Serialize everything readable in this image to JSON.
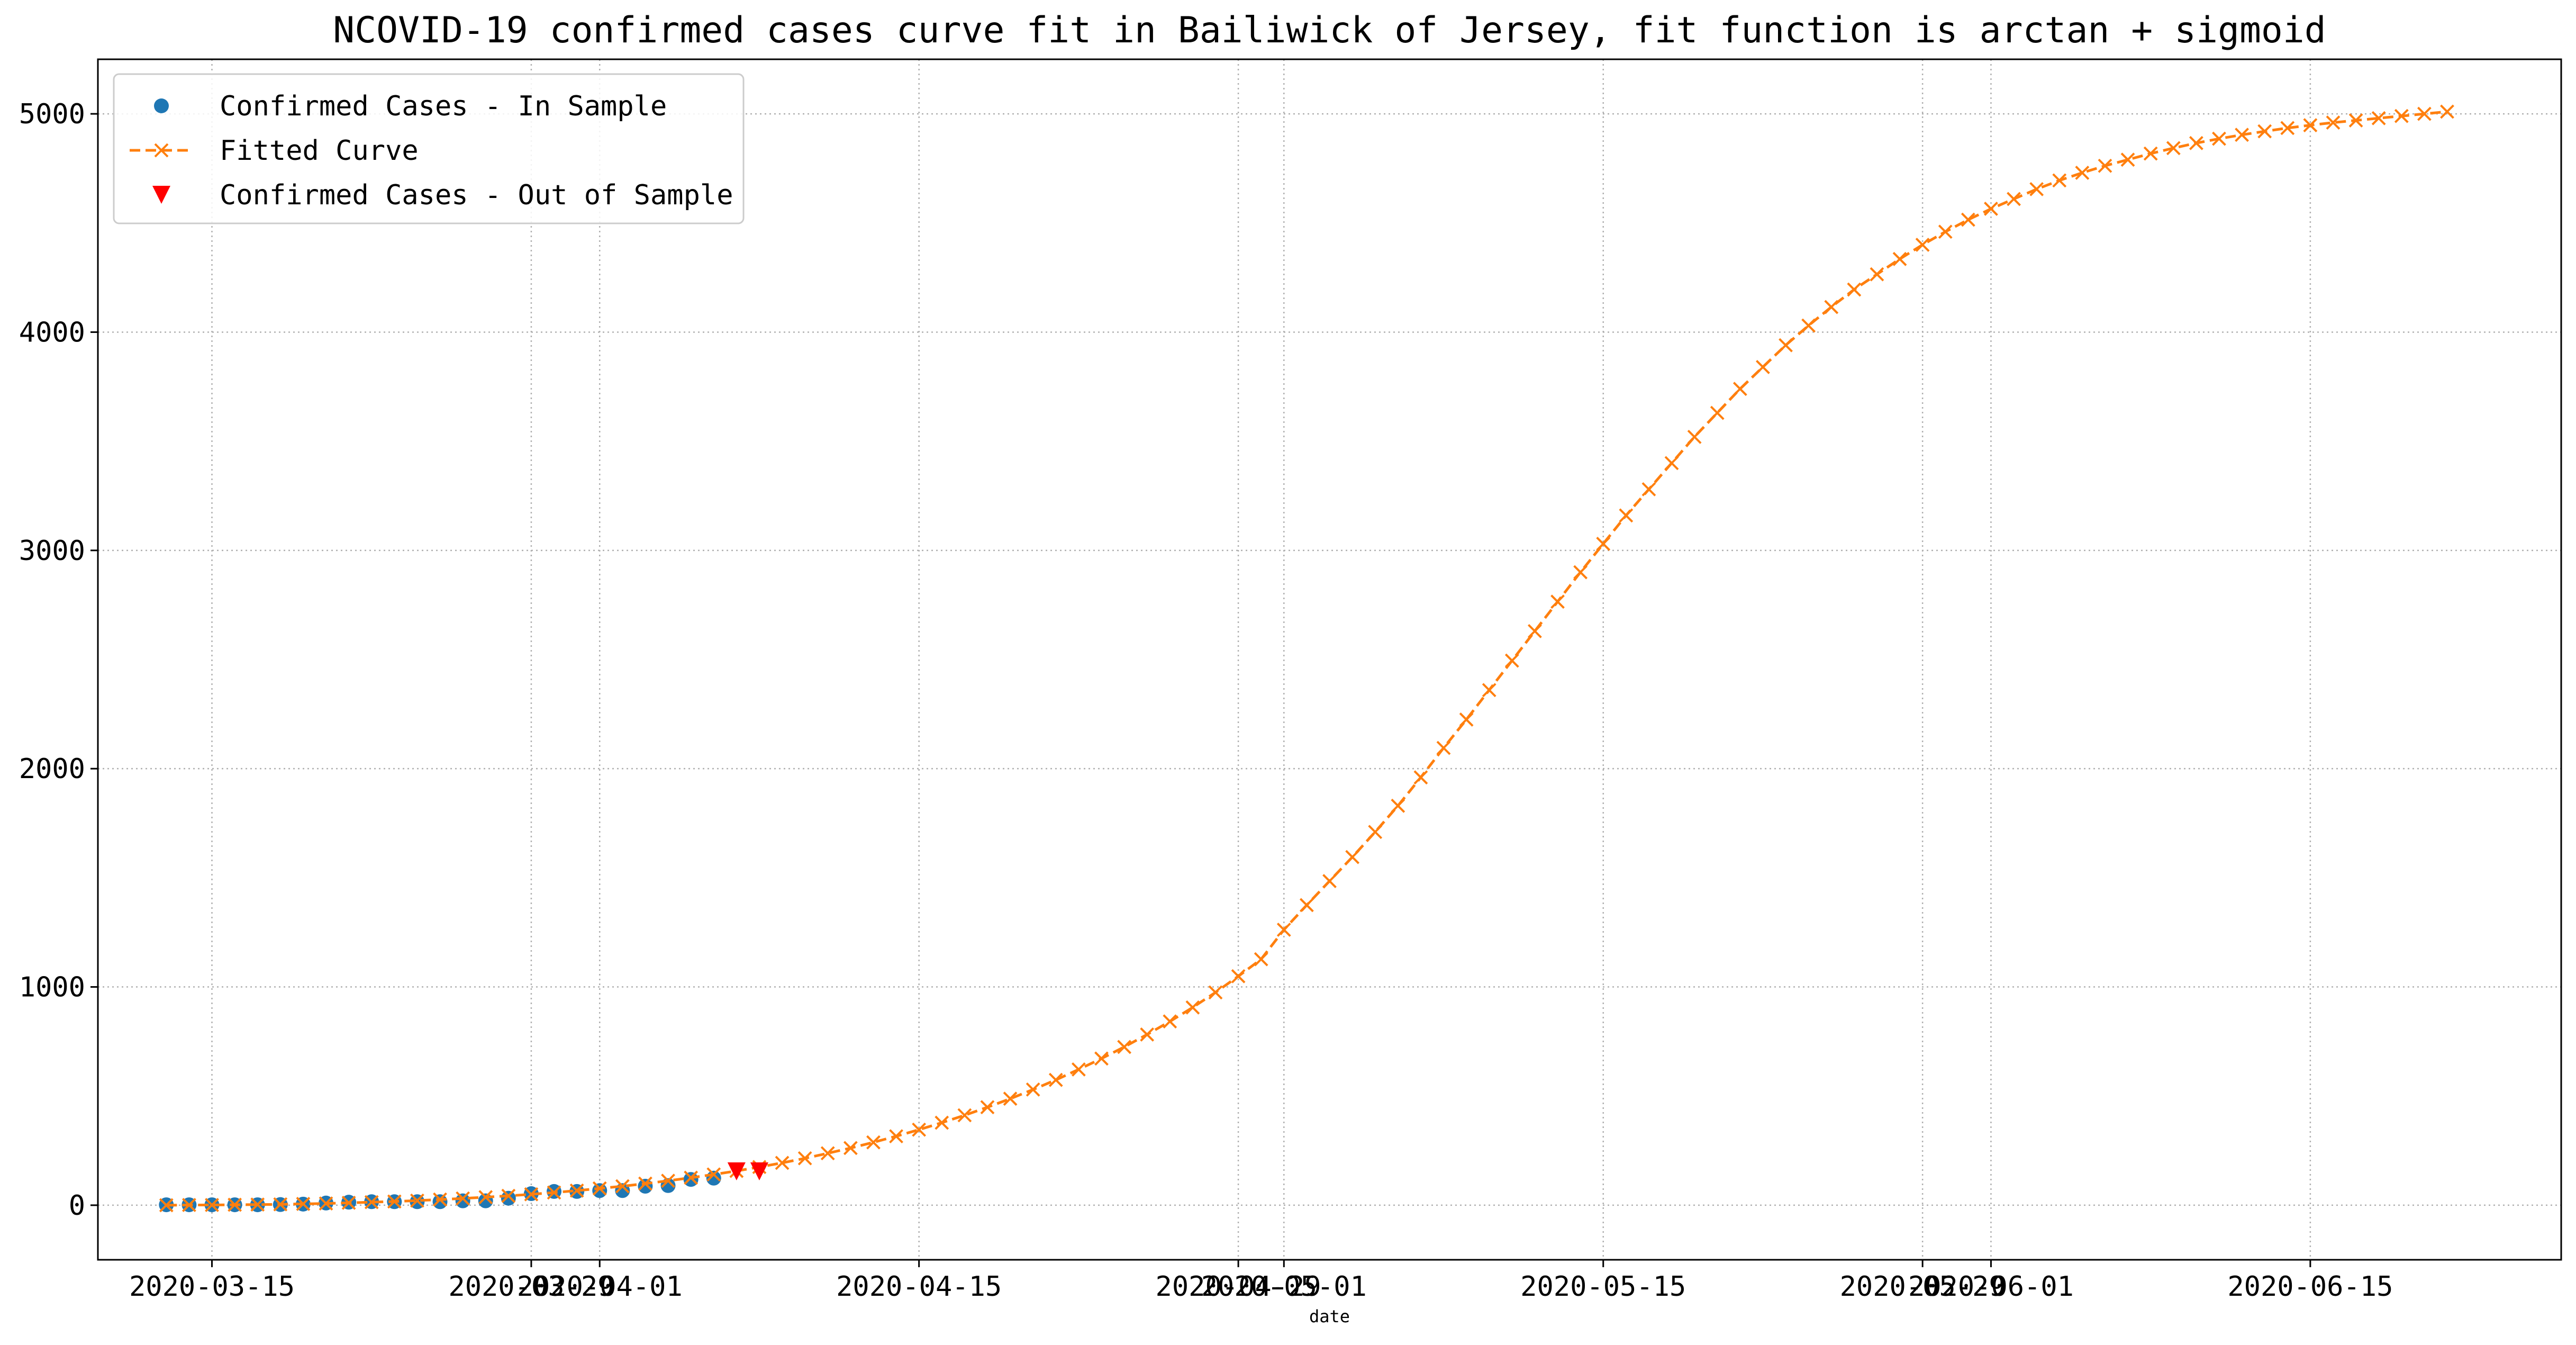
{
  "chart_data": {
    "type": "line",
    "title": "NCOVID-19 confirmed cases curve fit in Bailiwick of Jersey, fit function is arctan + sigmoid",
    "xlabel": "date",
    "ylabel": "",
    "xlim": [
      "2020-03-10",
      "2020-06-26"
    ],
    "ylim": [
      -250,
      5250
    ],
    "grid": true,
    "legend": "top-left",
    "x_ticks": [
      "2020-03-15",
      "2020-03-29",
      "2020-04-01",
      "2020-04-15",
      "2020-04-29",
      "2020-05-01",
      "2020-05-15",
      "2020-05-29",
      "2020-06-01",
      "2020-06-15"
    ],
    "y_ticks": [
      0,
      1000,
      2000,
      3000,
      4000,
      5000
    ],
    "series": [
      {
        "name": "Confirmed Cases - In Sample",
        "style": "circle",
        "color": "#1f77b4",
        "x": [
          "2020-03-13",
          "2020-03-14",
          "2020-03-15",
          "2020-03-16",
          "2020-03-17",
          "2020-03-18",
          "2020-03-19",
          "2020-03-20",
          "2020-03-21",
          "2020-03-22",
          "2020-03-23",
          "2020-03-24",
          "2020-03-25",
          "2020-03-26",
          "2020-03-27",
          "2020-03-28",
          "2020-03-29",
          "2020-03-30",
          "2020-03-31",
          "2020-04-01",
          "2020-04-02",
          "2020-04-03",
          "2020-04-04",
          "2020-04-05",
          "2020-04-06"
        ],
        "y": [
          2,
          2,
          2,
          2,
          2,
          3,
          5,
          10,
          14,
          16,
          16,
          16,
          16,
          20,
          20,
          32,
          53,
          63,
          63,
          67,
          67,
          87,
          90,
          118,
          124
        ]
      },
      {
        "name": "Fitted Curve",
        "style": "dashed-x",
        "color": "#ff7f0e",
        "x": [
          "2020-03-13",
          "2020-03-14",
          "2020-03-15",
          "2020-03-16",
          "2020-03-17",
          "2020-03-18",
          "2020-03-19",
          "2020-03-20",
          "2020-03-21",
          "2020-03-22",
          "2020-03-23",
          "2020-03-24",
          "2020-03-25",
          "2020-03-26",
          "2020-03-27",
          "2020-03-28",
          "2020-03-29",
          "2020-03-30",
          "2020-03-31",
          "2020-04-01",
          "2020-04-02",
          "2020-04-03",
          "2020-04-04",
          "2020-04-05",
          "2020-04-06",
          "2020-04-07",
          "2020-04-08",
          "2020-04-09",
          "2020-04-10",
          "2020-04-11",
          "2020-04-12",
          "2020-04-13",
          "2020-04-14",
          "2020-04-15",
          "2020-04-16",
          "2020-04-17",
          "2020-04-18",
          "2020-04-19",
          "2020-04-20",
          "2020-04-21",
          "2020-04-22",
          "2020-04-23",
          "2020-04-24",
          "2020-04-25",
          "2020-04-26",
          "2020-04-27",
          "2020-04-28",
          "2020-04-29",
          "2020-04-30",
          "2020-05-01",
          "2020-05-02",
          "2020-05-03",
          "2020-05-04",
          "2020-05-05",
          "2020-05-06",
          "2020-05-07",
          "2020-05-08",
          "2020-05-09",
          "2020-05-10",
          "2020-05-11",
          "2020-05-12",
          "2020-05-13",
          "2020-05-14",
          "2020-05-15",
          "2020-05-16",
          "2020-05-17",
          "2020-05-18",
          "2020-05-19",
          "2020-05-20",
          "2020-05-21",
          "2020-05-22",
          "2020-05-23",
          "2020-05-24",
          "2020-05-25",
          "2020-05-26",
          "2020-05-27",
          "2020-05-28",
          "2020-05-29",
          "2020-05-30",
          "2020-05-31",
          "2020-06-01",
          "2020-06-02",
          "2020-06-03",
          "2020-06-04",
          "2020-06-05",
          "2020-06-06",
          "2020-06-07",
          "2020-06-08",
          "2020-06-09",
          "2020-06-10",
          "2020-06-11",
          "2020-06-12",
          "2020-06-13",
          "2020-06-14",
          "2020-06-15",
          "2020-06-16",
          "2020-06-17",
          "2020-06-18",
          "2020-06-19",
          "2020-06-20",
          "2020-06-21"
        ],
        "y": [
          0,
          1,
          1,
          2,
          3,
          4,
          6,
          8,
          11,
          14,
          17,
          21,
          26,
          31,
          37,
          43,
          50,
          58,
          67,
          77,
          87,
          99,
          112,
          126,
          141,
          157,
          175,
          194,
          215,
          238,
          262,
          288,
          316,
          346,
          378,
          412,
          449,
          488,
          530,
          574,
          622,
          672,
          725,
          782,
          842,
          906,
          975,
          1049,
          1127,
          1262,
          1375,
          1485,
          1595,
          1710,
          1830,
          1960,
          2095,
          2225,
          2360,
          2495,
          2630,
          2765,
          2900,
          3030,
          3160,
          3280,
          3400,
          3520,
          3630,
          3740,
          3840,
          3940,
          4030,
          4115,
          4195,
          4265,
          4335,
          4400,
          4460,
          4515,
          4565,
          4610,
          4655,
          4695,
          4730,
          4762,
          4790,
          4818,
          4843,
          4866,
          4886,
          4904,
          4920,
          4935,
          4948,
          4960,
          4970,
          4980,
          4990,
          5000,
          5010
        ]
      },
      {
        "name": "Confirmed Cases - Out of Sample",
        "style": "triangle-down",
        "color": "#ff0000",
        "x": [
          "2020-04-07",
          "2020-04-08"
        ],
        "y": [
          155,
          155
        ]
      }
    ]
  }
}
